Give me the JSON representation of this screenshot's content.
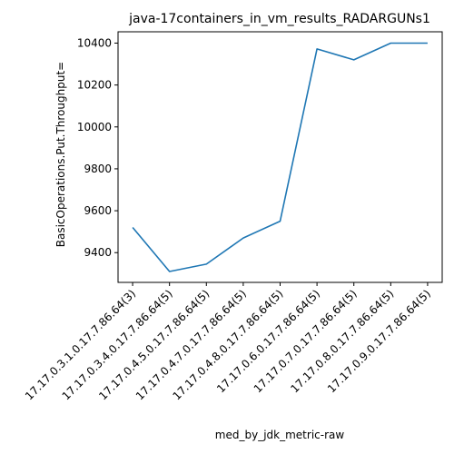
{
  "chart_data": {
    "type": "line",
    "title": "java-17containers_in_vm_results_RADARGUNs1",
    "xlabel": "med_by_jdk_metric-raw",
    "ylabel": "BasicOperations.Put.Throughput=",
    "categories": [
      "17.17.0.3.1.0.17.7.86.64(3)",
      "17.17.0.3.4.0.17.7.86.64(5)",
      "17.17.0.4.5.0.17.7.86.64(5)",
      "17.17.0.4.7.0.17.7.86.64(5)",
      "17.17.0.4.8.0.17.7.86.64(5)",
      "17.17.0.6.0.17.7.86.64(5)",
      "17.17.0.7.0.17.7.86.64(5)",
      "17.17.0.8.0.17.7.86.64(5)",
      "17.17.0.9.0.17.7.86.64(5)"
    ],
    "series": [
      {
        "values": [
          9520,
          9310,
          9345,
          9470,
          9550,
          10372,
          10320,
          10400,
          10400
        ]
      }
    ],
    "ylim": [
      9258,
      10454
    ],
    "yticks": [
      9400,
      9600,
      9800,
      10000,
      10200,
      10400
    ],
    "grid": false,
    "legend": "none",
    "line_color": "#1f77b4"
  }
}
